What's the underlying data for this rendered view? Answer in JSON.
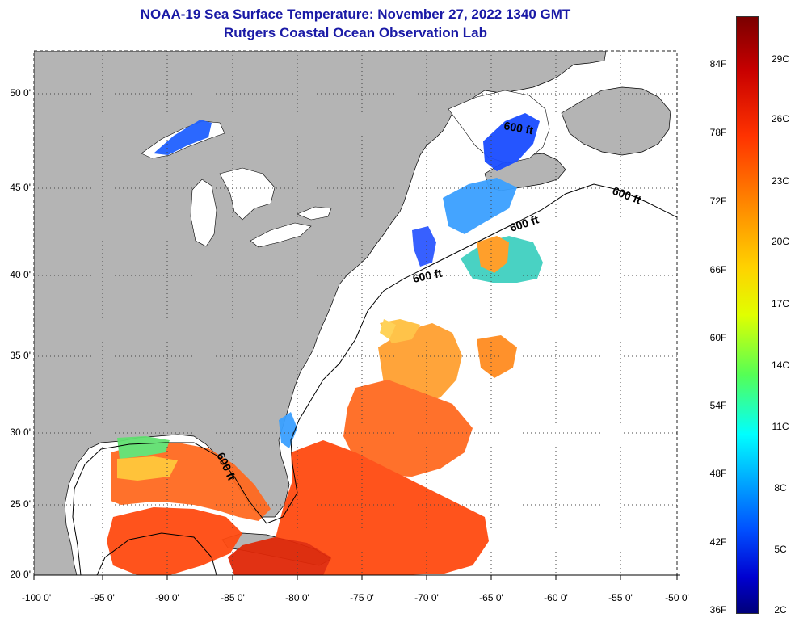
{
  "header": {
    "title_line1": "NOAA-19 Sea Surface Temperature:  November 27, 2022 1340 GMT",
    "title_line2": "Rutgers Coastal Ocean Observation Lab"
  },
  "map": {
    "lat_labels": [
      "50 0'",
      "45 0'",
      "40 0'",
      "35 0'",
      "30 0'",
      "25 0'",
      "20 0'"
    ],
    "lon_labels": [
      "-100 0'",
      "-95 0'",
      "-90 0'",
      "-85 0'",
      "-80 0'",
      "-75 0'",
      "-70 0'",
      "-65 0'",
      "-60 0'",
      "-55 0'",
      "-50 0'"
    ],
    "contour_labels": [
      "600 ft",
      "600 ft",
      "600 ft",
      "600 ft",
      "600 ft"
    ],
    "land_color": "#b4b4b4",
    "ocean_no_data_color": "#ffffff"
  },
  "colorbar": {
    "fahrenheit_labels": [
      "84F",
      "78F",
      "72F",
      "66F",
      "60F",
      "54F",
      "48F",
      "42F",
      "36F"
    ],
    "celsius_labels": [
      "29C",
      "26C",
      "23C",
      "20C",
      "17C",
      "14C",
      "11C",
      "8C",
      "5C",
      "2C"
    ]
  }
}
